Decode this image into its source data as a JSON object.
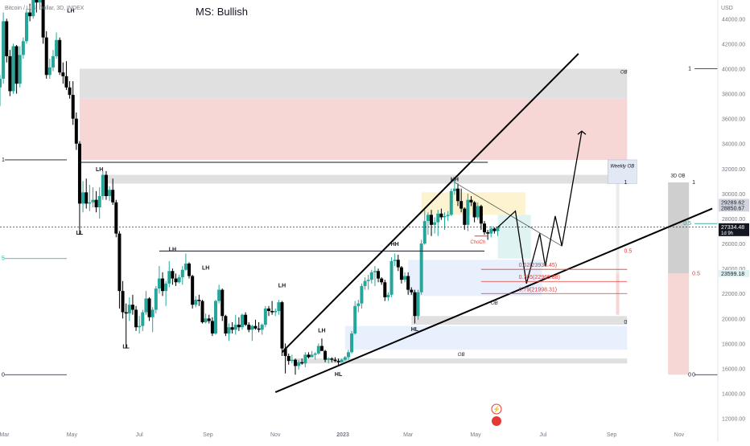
{
  "header": {
    "symbol_line": "Bitcoin / U.S. Dollar, 3D, INDEX",
    "title": "MS: Bullish",
    "currency": "USD"
  },
  "chart_data": {
    "type": "candlestick",
    "title": "MS: Bullish",
    "ylabel": "USD",
    "ylim": [
      11400,
      45500
    ],
    "y_ticks": [
      12000,
      14000,
      16000,
      18000,
      20000,
      22000,
      24000,
      26000,
      28000,
      30000,
      32000,
      34000,
      36000,
      38000,
      40000,
      42000,
      44000
    ],
    "x_ticks": [
      "Mar",
      "May",
      "Jul",
      "Sep",
      "Nov",
      "2023",
      "Mar",
      "May",
      "Jul",
      "Sep",
      "Nov"
    ],
    "x_range": [
      "2022-02-25",
      "2023-12-06"
    ],
    "candles": [
      [
        "2022-02-25",
        38500,
        39500,
        37000,
        39200
      ],
      [
        "2022-02-28",
        39200,
        44500,
        38800,
        43800
      ],
      [
        "2022-03-03",
        43800,
        44000,
        40500,
        41000
      ],
      [
        "2022-03-06",
        41000,
        41500,
        37800,
        38200
      ],
      [
        "2022-03-09",
        38200,
        42000,
        38000,
        41800
      ],
      [
        "2022-03-12",
        41800,
        41900,
        38000,
        38800
      ],
      [
        "2022-03-15",
        38800,
        41800,
        38500,
        41100
      ],
      [
        "2022-03-18",
        41100,
        42500,
        40800,
        42200
      ],
      [
        "2022-03-21",
        42200,
        44800,
        42000,
        44500
      ],
      [
        "2022-03-24",
        44500,
        45200,
        43800,
        44200
      ],
      [
        "2022-03-27",
        44200,
        48000,
        44000,
        46800
      ],
      [
        "2022-03-30",
        46800,
        47200,
        44500,
        45300
      ],
      [
        "2022-04-02",
        45300,
        46800,
        44800,
        45800
      ],
      [
        "2022-04-05",
        45800,
        46000,
        42000,
        42500
      ],
      [
        "2022-04-08",
        42500,
        43000,
        39200,
        39500
      ],
      [
        "2022-04-11",
        39500,
        40800,
        39200,
        40100
      ],
      [
        "2022-04-14",
        40100,
        41500,
        39800,
        41000
      ],
      [
        "2022-04-17",
        41000,
        42900,
        40800,
        42300
      ],
      [
        "2022-04-20",
        42300,
        42500,
        39500,
        39700
      ],
      [
        "2022-04-23",
        39700,
        40500,
        38800,
        39400
      ],
      [
        "2022-04-26",
        39400,
        40600,
        38300,
        38500
      ],
      [
        "2022-04-29",
        38500,
        39000,
        37600,
        37900
      ],
      [
        "2022-05-02",
        37900,
        39000,
        35500,
        36000
      ],
      [
        "2022-05-05",
        36000,
        36500,
        33500,
        34000
      ],
      [
        "2022-05-08",
        34000,
        34200,
        26700,
        29200
      ],
      [
        "2022-05-11",
        29200,
        31000,
        28500,
        30100
      ],
      [
        "2022-05-14",
        30100,
        31200,
        28800,
        29200
      ],
      [
        "2022-05-17",
        29200,
        30700,
        28600,
        29300
      ],
      [
        "2022-05-20",
        29300,
        30500,
        28900,
        29500
      ],
      [
        "2022-05-23",
        29500,
        30200,
        28500,
        28900
      ],
      [
        "2022-05-26",
        28900,
        30500,
        28000,
        29800
      ],
      [
        "2022-05-29",
        29800,
        31800,
        29500,
        31500
      ],
      [
        "2022-06-01",
        31500,
        31800,
        29500,
        29800
      ],
      [
        "2022-06-04",
        29800,
        30600,
        29400,
        30300
      ],
      [
        "2022-06-07",
        30300,
        31200,
        29100,
        29300
      ],
      [
        "2022-06-10",
        29300,
        29500,
        26500,
        26800
      ],
      [
        "2022-06-13",
        26800,
        27000,
        20800,
        22200
      ],
      [
        "2022-06-16",
        22200,
        23000,
        20000,
        20500
      ],
      [
        "2022-06-19",
        20500,
        21200,
        17600,
        20400
      ],
      [
        "2022-06-22",
        20400,
        21700,
        19800,
        21100
      ],
      [
        "2022-06-25",
        21100,
        21900,
        20300,
        20700
      ],
      [
        "2022-06-28",
        20700,
        21000,
        19000,
        19300
      ],
      [
        "2022-07-01",
        19300,
        20200,
        18800,
        19400
      ],
      [
        "2022-07-04",
        19400,
        20700,
        19000,
        20500
      ],
      [
        "2022-07-07",
        20500,
        22200,
        20300,
        21600
      ],
      [
        "2022-07-10",
        21600,
        21700,
        19800,
        20100
      ],
      [
        "2022-07-13",
        20100,
        20900,
        18900,
        20700
      ],
      [
        "2022-07-16",
        20700,
        22600,
        20400,
        22400
      ],
      [
        "2022-07-19",
        22400,
        24200,
        22000,
        23200
      ],
      [
        "2022-07-22",
        23200,
        23700,
        21800,
        22200
      ],
      [
        "2022-07-25",
        22200,
        23000,
        21000,
        22800
      ],
      [
        "2022-07-28",
        22800,
        24600,
        22500,
        23800
      ],
      [
        "2022-07-31",
        23800,
        24000,
        22700,
        23200
      ],
      [
        "2022-08-03",
        23200,
        23600,
        22600,
        22900
      ],
      [
        "2022-08-06",
        22900,
        23500,
        22800,
        23300
      ],
      [
        "2022-08-09",
        23300,
        24200,
        22700,
        23900
      ],
      [
        "2022-08-12",
        23900,
        25200,
        23800,
        24400
      ],
      [
        "2022-08-15",
        24400,
        24500,
        23200,
        23400
      ],
      [
        "2022-08-18",
        23400,
        23500,
        20800,
        21100
      ],
      [
        "2022-08-21",
        21100,
        21800,
        20900,
        21500
      ],
      [
        "2022-08-24",
        21500,
        21900,
        21000,
        21400
      ],
      [
        "2022-08-27",
        21400,
        21500,
        19600,
        19700
      ],
      [
        "2022-08-30",
        19700,
        20400,
        19600,
        20000
      ],
      [
        "2022-09-02",
        20000,
        20300,
        19600,
        19800
      ],
      [
        "2022-09-05",
        19800,
        20100,
        18600,
        18800
      ],
      [
        "2022-09-08",
        18800,
        21500,
        18700,
        21400
      ],
      [
        "2022-09-11",
        21400,
        22700,
        21200,
        22300
      ],
      [
        "2022-09-14",
        22300,
        22400,
        19800,
        20200
      ],
      [
        "2022-09-17",
        20200,
        20300,
        18600,
        18800
      ],
      [
        "2022-09-20",
        18800,
        19600,
        18200,
        19300
      ],
      [
        "2022-09-23",
        19300,
        19700,
        18800,
        19100
      ],
      [
        "2022-09-26",
        19100,
        20300,
        18700,
        19500
      ],
      [
        "2022-09-29",
        19500,
        20100,
        19000,
        19300
      ],
      [
        "2022-10-02",
        19300,
        20400,
        19100,
        20300
      ],
      [
        "2022-10-05",
        20300,
        20500,
        19400,
        19500
      ],
      [
        "2022-10-08",
        19500,
        19700,
        18900,
        19100
      ],
      [
        "2022-10-11",
        19100,
        19500,
        18200,
        19400
      ],
      [
        "2022-10-14",
        19400,
        19900,
        19100,
        19200
      ],
      [
        "2022-10-17",
        19200,
        19700,
        18900,
        19100
      ],
      [
        "2022-10-20",
        19100,
        19600,
        18700,
        19500
      ],
      [
        "2022-10-23",
        19500,
        21000,
        19300,
        20800
      ],
      [
        "2022-10-26",
        20800,
        21000,
        20200,
        20600
      ],
      [
        "2022-10-29",
        20600,
        21400,
        20300,
        20500
      ],
      [
        "2022-11-01",
        20500,
        20800,
        20200,
        20600
      ],
      [
        "2022-11-04",
        20600,
        21500,
        20300,
        21300
      ],
      [
        "2022-11-07",
        21300,
        21400,
        17000,
        17600
      ],
      [
        "2022-11-10",
        17600,
        18000,
        15600,
        17000
      ],
      [
        "2022-11-13",
        17000,
        17200,
        16300,
        16600
      ],
      [
        "2022-11-16",
        16600,
        17100,
        16400,
        16700
      ],
      [
        "2022-11-19",
        16700,
        16800,
        15500,
        16200
      ],
      [
        "2022-11-22",
        16200,
        16700,
        15900,
        16500
      ],
      [
        "2022-11-25",
        16500,
        16800,
        16300,
        16400
      ],
      [
        "2022-11-28",
        16400,
        17300,
        16100,
        17100
      ],
      [
        "2022-12-01",
        17100,
        17300,
        16800,
        16900
      ],
      [
        "2022-12-04",
        16900,
        17400,
        16900,
        17100
      ],
      [
        "2022-12-07",
        17100,
        17300,
        16700,
        17200
      ],
      [
        "2022-12-10",
        17200,
        18000,
        17100,
        17800
      ],
      [
        "2022-12-13",
        17800,
        18400,
        17600,
        17400
      ],
      [
        "2022-12-16",
        17400,
        17500,
        16500,
        16700
      ],
      [
        "2022-12-19",
        16700,
        16900,
        16400,
        16800
      ],
      [
        "2022-12-22",
        16800,
        16900,
        16500,
        16700
      ],
      [
        "2022-12-25",
        16700,
        16900,
        16500,
        16600
      ],
      [
        "2022-12-28",
        16600,
        16800,
        16300,
        16500
      ],
      [
        "2022-12-31",
        16500,
        16800,
        16500,
        16700
      ],
      [
        "2023-01-03",
        16700,
        17000,
        16600,
        16900
      ],
      [
        "2023-01-06",
        16900,
        17500,
        16700,
        17300
      ],
      [
        "2023-01-09",
        17300,
        19000,
        17200,
        18800
      ],
      [
        "2023-01-12",
        18800,
        21400,
        18700,
        21000
      ],
      [
        "2023-01-15",
        21000,
        21500,
        20500,
        21200
      ],
      [
        "2023-01-18",
        21200,
        22800,
        20800,
        22600
      ],
      [
        "2023-01-21",
        22600,
        23300,
        22300,
        23000
      ],
      [
        "2023-01-24",
        23000,
        23500,
        22300,
        23100
      ],
      [
        "2023-01-27",
        23100,
        23900,
        22800,
        23700
      ],
      [
        "2023-01-30",
        23700,
        24200,
        22600,
        23800
      ],
      [
        "2023-02-02",
        23800,
        24000,
        22900,
        23200
      ],
      [
        "2023-02-05",
        23200,
        23300,
        22700,
        22900
      ],
      [
        "2023-02-08",
        22900,
        23100,
        21400,
        21700
      ],
      [
        "2023-02-11",
        21700,
        22100,
        21400,
        21900
      ],
      [
        "2023-02-14",
        21900,
        24900,
        21700,
        24600
      ],
      [
        "2023-02-17",
        24600,
        25200,
        24200,
        24700
      ],
      [
        "2023-02-20",
        24700,
        25100,
        23800,
        24100
      ],
      [
        "2023-02-23",
        24100,
        24200,
        22800,
        23100
      ],
      [
        "2023-02-26",
        23100,
        23700,
        22900,
        23400
      ],
      [
        "2023-03-01",
        23400,
        23700,
        21900,
        22300
      ],
      [
        "2023-03-04",
        22300,
        22500,
        21900,
        22100
      ],
      [
        "2023-03-07",
        22100,
        22300,
        19600,
        20200
      ],
      [
        "2023-03-10",
        20200,
        22300,
        19900,
        22100
      ],
      [
        "2023-03-13",
        22100,
        26300,
        21900,
        26000
      ],
      [
        "2023-03-16",
        26000,
        28700,
        25900,
        27800
      ],
      [
        "2023-03-19",
        27800,
        28500,
        26700,
        28300
      ],
      [
        "2023-03-22",
        28300,
        28700,
        26600,
        27500
      ],
      [
        "2023-03-25",
        27500,
        28100,
        26800,
        27700
      ],
      [
        "2023-03-28",
        27700,
        28700,
        26600,
        28400
      ],
      [
        "2023-03-31",
        28400,
        28800,
        27900,
        28100
      ],
      [
        "2023-04-03",
        28100,
        28500,
        27100,
        28200
      ],
      [
        "2023-04-06",
        28200,
        28600,
        27800,
        28300
      ],
      [
        "2023-04-09",
        28300,
        30400,
        28200,
        30200
      ],
      [
        "2023-04-12",
        30200,
        31000,
        29900,
        30400
      ],
      [
        "2023-04-15",
        30400,
        30800,
        29000,
        29400
      ],
      [
        "2023-04-18",
        29400,
        30400,
        28500,
        28800
      ],
      [
        "2023-04-21",
        28800,
        28900,
        27100,
        27500
      ],
      [
        "2023-04-24",
        27500,
        30000,
        27000,
        29500
      ],
      [
        "2023-04-27",
        29500,
        29800,
        29000,
        29300
      ],
      [
        "2023-04-30",
        29300,
        29400,
        27700,
        28100
      ],
      [
        "2023-05-03",
        28100,
        29300,
        27900,
        29000
      ],
      [
        "2023-05-06",
        29000,
        29100,
        27100,
        27600
      ],
      [
        "2023-05-09",
        27600,
        27800,
        26700,
        26900
      ],
      [
        "2023-05-12",
        26900,
        27100,
        26300,
        26800
      ],
      [
        "2023-05-15",
        26800,
        27400,
        26500,
        27200
      ],
      [
        "2023-05-18",
        27200,
        27300,
        26800,
        27000
      ],
      [
        "2023-05-21",
        27000,
        27300,
        26600,
        27334
      ]
    ],
    "annotations": {
      "swing_labels": [
        {
          "text": "LH",
          "date": "2022-04-30",
          "price": 44500
        },
        {
          "text": "LH",
          "date": "2022-05-26",
          "price": 31800
        },
        {
          "text": "LL",
          "date": "2022-05-08",
          "price": 26700
        },
        {
          "text": "LL",
          "date": "2022-06-19",
          "price": 17600
        },
        {
          "text": "LH",
          "date": "2022-07-31",
          "price": 25400
        },
        {
          "text": "LH",
          "date": "2022-08-30",
          "price": 23900
        },
        {
          "text": "LH",
          "date": "2022-11-07",
          "price": 22500
        },
        {
          "text": "LH",
          "date": "2022-12-13",
          "price": 18900
        },
        {
          "text": "HL",
          "date": "2022-12-28",
          "price": 15400
        },
        {
          "text": "HH",
          "date": "2023-02-17",
          "price": 25800
        },
        {
          "text": "HL",
          "date": "2023-03-07",
          "price": 19000
        },
        {
          "text": "HH",
          "date": "2023-04-12",
          "price": 31000
        }
      ],
      "choch": {
        "text": "ChoCh",
        "price": 26600
      },
      "fib_levels": [
        {
          "label": "0.62(23933.45)",
          "price": 23933.45
        },
        {
          "label": "0.705(22965.88)",
          "price": 22965.88
        },
        {
          "label": "0.79(21998.31)",
          "price": 21998.31
        }
      ],
      "ob_labels": [
        "OB",
        "OB",
        "OB",
        "OB"
      ],
      "weekly_ob_label": "Weekly OB",
      "three_d_ob_label": "3D OB",
      "left_fib_labels": [
        "1",
        "5",
        "0"
      ],
      "right_fib_labels_a": [
        "1",
        "0.5",
        "0.5",
        "0"
      ],
      "right_fib_labels_b": [
        "1",
        "0.5",
        "0"
      ],
      "price_tags": [
        {
          "price": 29289.62,
          "text": "29289.62",
          "style": "gray"
        },
        {
          "price": 28850.67,
          "text": "28850.67",
          "style": "gray"
        },
        {
          "price": 27334.48,
          "text": "27334.48",
          "sub": "1d 9h",
          "style": "dark"
        },
        {
          "price": 23599.18,
          "text": "23599.18",
          "style": "teal"
        }
      ]
    },
    "colors": {
      "up": "#26a69a",
      "down": "#000000",
      "bg": "#ffffff",
      "resistance": "#f7d6d6",
      "ob_gray": "#e0e0e0",
      "demand": "#e8f0fd",
      "teal": "#22a7a0",
      "red": "#e53935"
    }
  }
}
